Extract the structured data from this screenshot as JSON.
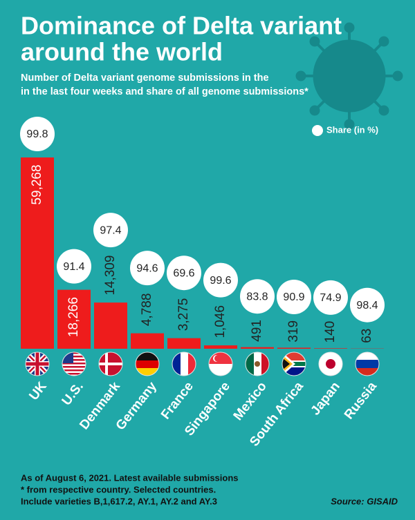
{
  "chart_data": {
    "type": "bar",
    "title": [
      "Dominance of Delta variant",
      "around the world"
    ],
    "subtitle": [
      "Number of Delta variant genome submissions in the",
      "in the last four weeks and share of all genome submissions*"
    ],
    "categories": [
      "UK",
      "U.S.",
      "Denmark",
      "Germany",
      "France",
      "Singapore",
      "Mexico",
      "South Africa",
      "Japan",
      "Russia"
    ],
    "series": [
      {
        "name": "Submissions",
        "color": "#ee1c1c",
        "values": [
          59268,
          18266,
          14309,
          4788,
          3275,
          1046,
          491,
          319,
          140,
          63
        ],
        "value_labels": [
          "59,268",
          "18,266",
          "14,309",
          "4,788",
          "3,275",
          "1,046",
          "491",
          "319",
          "140",
          "63"
        ]
      },
      {
        "name": "Share (in %)",
        "color": "#ffffff",
        "values": [
          99.8,
          91.4,
          97.4,
          94.6,
          69.6,
          99.6,
          83.8,
          90.9,
          74.9,
          98.4
        ]
      }
    ],
    "notes": [
      "As of August 6, 2021. Latest available submissions",
      "* from respective country. Selected countries.",
      "Include varieties B,1,617.2, AY.1, AY.2 and AY.3"
    ],
    "source": "Source: GISAID"
  }
}
